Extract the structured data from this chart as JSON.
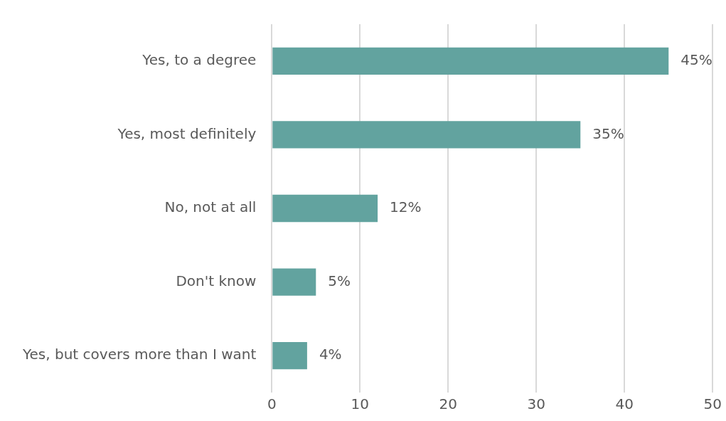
{
  "chart_data": {
    "type": "bar",
    "orientation": "horizontal",
    "categories": [
      "Yes, to a degree",
      "Yes, most definitely",
      "No, not at all",
      "Don't know",
      "Yes, but covers more than I want"
    ],
    "values": [
      45,
      35,
      12,
      5,
      4
    ],
    "value_labels": [
      "45%",
      "35%",
      "12%",
      "5%",
      "4%"
    ],
    "color": "#62a39f",
    "xlim": [
      0,
      50
    ],
    "xticks": [
      0,
      10,
      20,
      30,
      40,
      50
    ],
    "grid": "x",
    "legend": false
  }
}
